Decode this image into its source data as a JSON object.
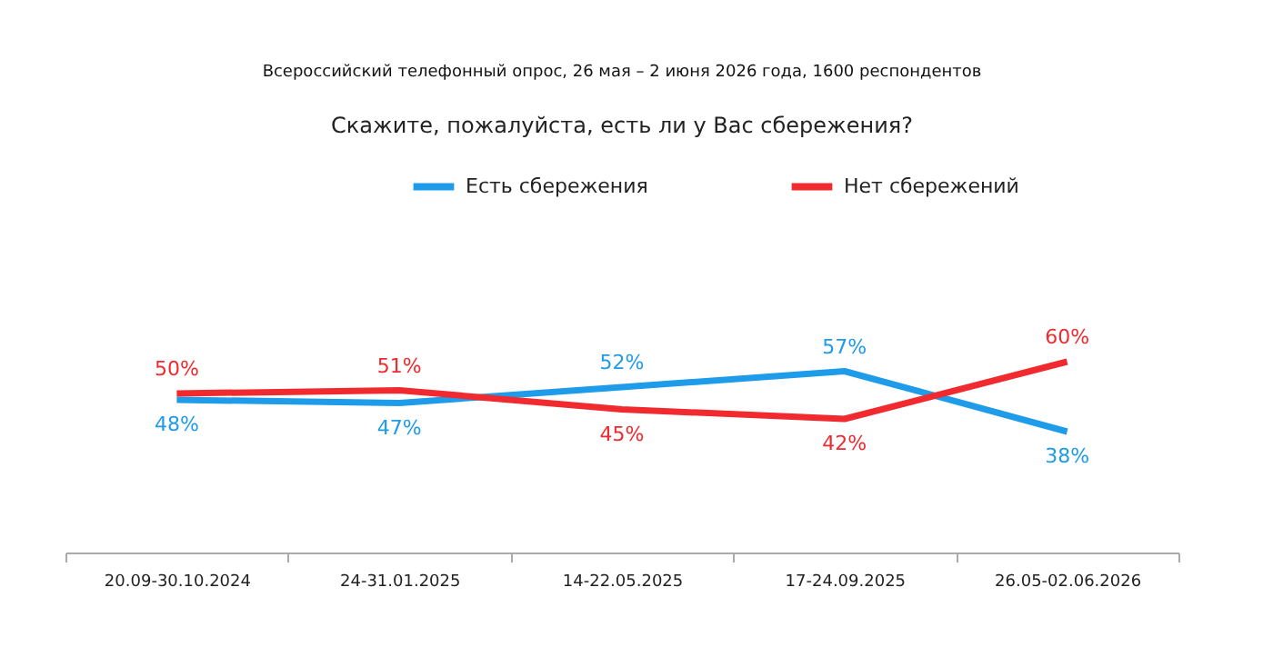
{
  "chart_data": {
    "type": "line",
    "title": "Скажите, пожалуйста, есть ли у Вас сбережения?",
    "subtitle": "Всероссийский телефонный опрос, 26 мая – 2 июня 2026 года, 1600 респондентов",
    "categories": [
      "20.09-30.10.2024",
      "24-31.01.2025",
      "14-22.05.2025",
      "17-24.09.2025",
      "26.05-02.06.2026"
    ],
    "series": [
      {
        "name": "Есть сбережения",
        "color": "#1e9be9",
        "values": [
          48,
          47,
          52,
          57,
          38
        ],
        "value_labels": [
          "48%",
          "47%",
          "52%",
          "57%",
          "38%"
        ]
      },
      {
        "name": "Нет сбережений",
        "color": "#f02a2f",
        "values": [
          50,
          51,
          45,
          42,
          60
        ],
        "value_labels": [
          "50%",
          "51%",
          "45%",
          "42%",
          "60%"
        ]
      }
    ],
    "legend": "top",
    "grid": false,
    "marker": "none",
    "line_style": "solid"
  }
}
